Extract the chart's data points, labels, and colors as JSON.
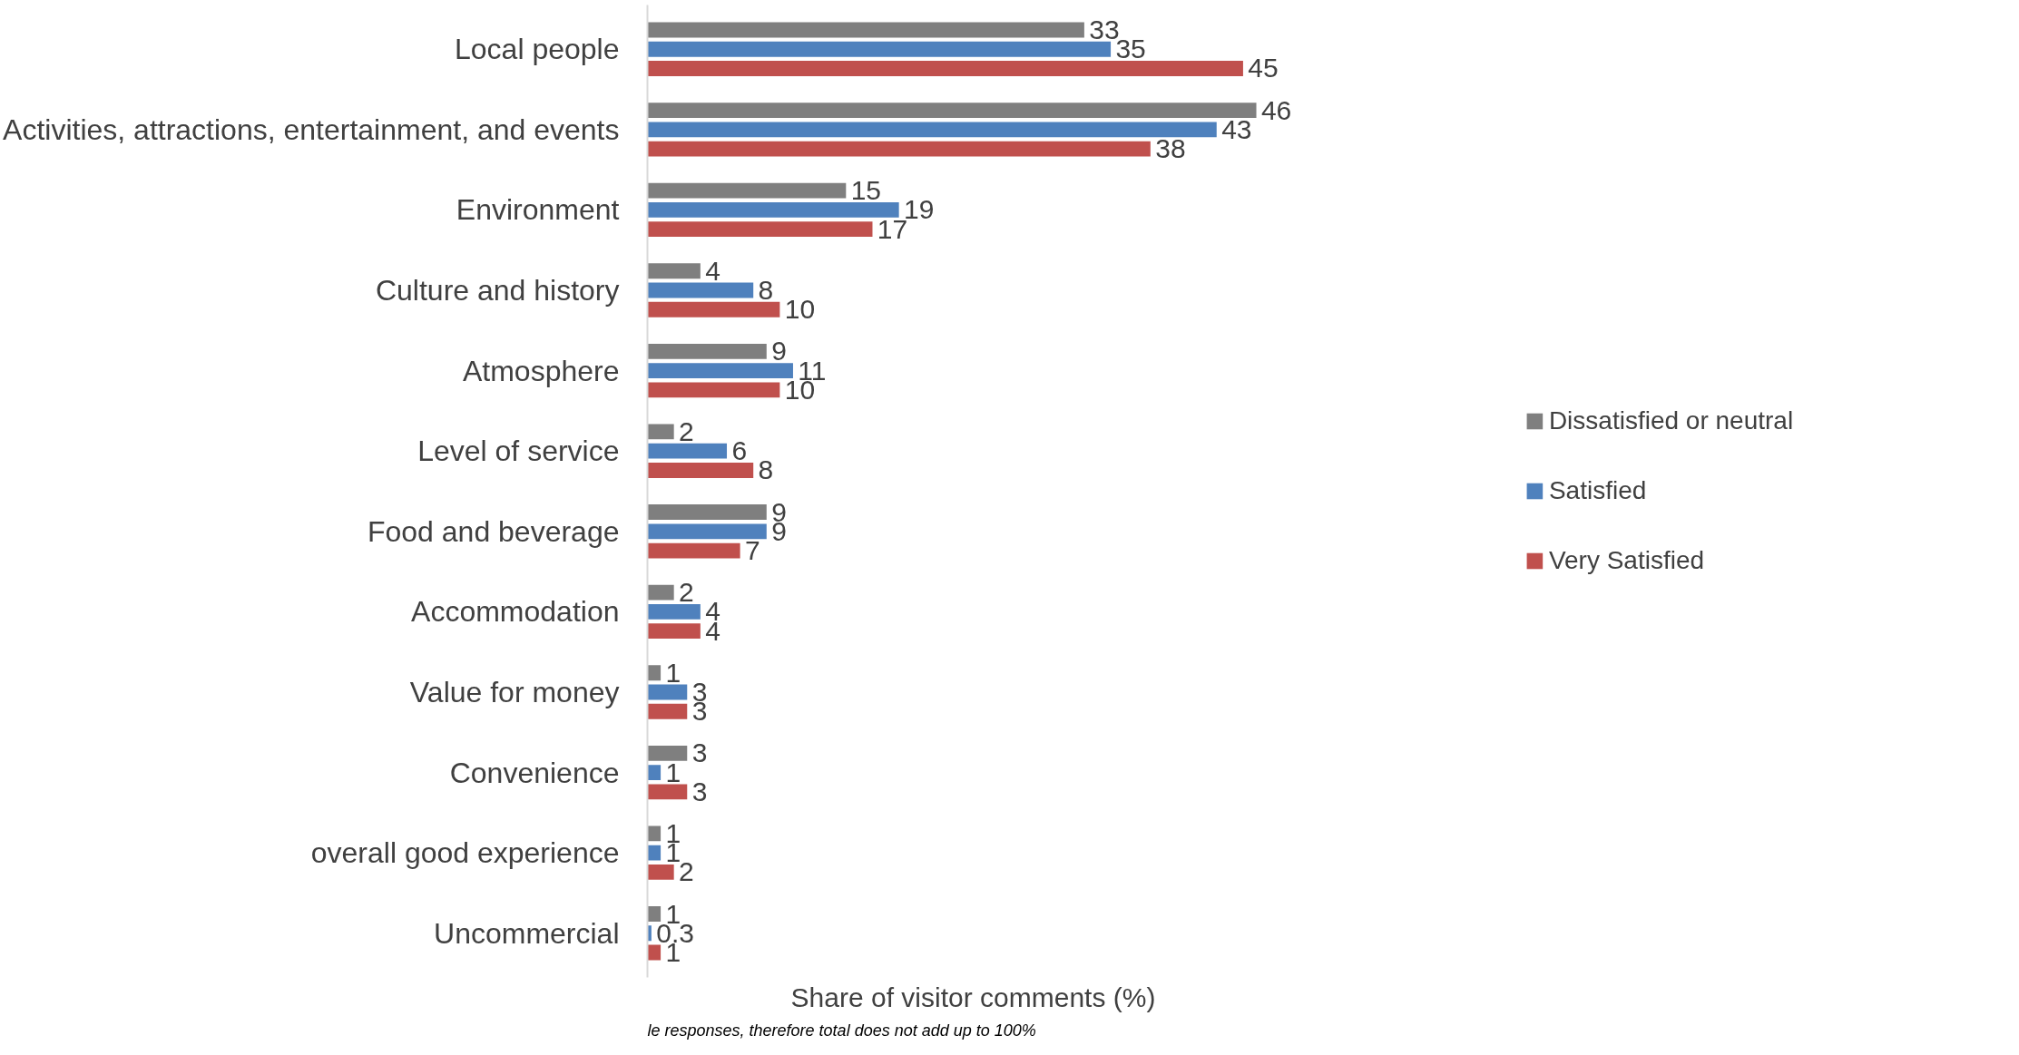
{
  "chart_data": {
    "type": "bar",
    "orientation": "horizontal",
    "data_labels": true,
    "legend": "right",
    "grid": false,
    "xlabel": "Share of visitor comments (%)",
    "annotations": [
      "le responses, therefore total does not add up to 100%"
    ],
    "categories": [
      "Local people",
      "Activities, attractions, entertainment, and events",
      "Environment",
      "Culture and history",
      "Atmosphere",
      "Level of service",
      "Food and beverage",
      "Accommodation",
      "Value for money",
      "Convenience",
      "overall good experience",
      "Uncommercial"
    ],
    "series": [
      {
        "name": "Dissatisfied or neutral",
        "color": "#7f7f7f",
        "values": [
          33,
          46,
          15,
          4,
          9,
          2,
          9,
          2,
          1,
          3,
          1,
          1
        ]
      },
      {
        "name": "Satisfied",
        "color": "#4f81bd",
        "values": [
          35,
          43,
          19,
          8,
          11,
          6,
          9,
          4,
          3,
          1,
          1,
          0.3
        ]
      },
      {
        "name": "Very Satisfied",
        "color": "#c0504d",
        "values": [
          45,
          38,
          17,
          10,
          10,
          8,
          7,
          4,
          3,
          3,
          2,
          1
        ]
      }
    ]
  }
}
